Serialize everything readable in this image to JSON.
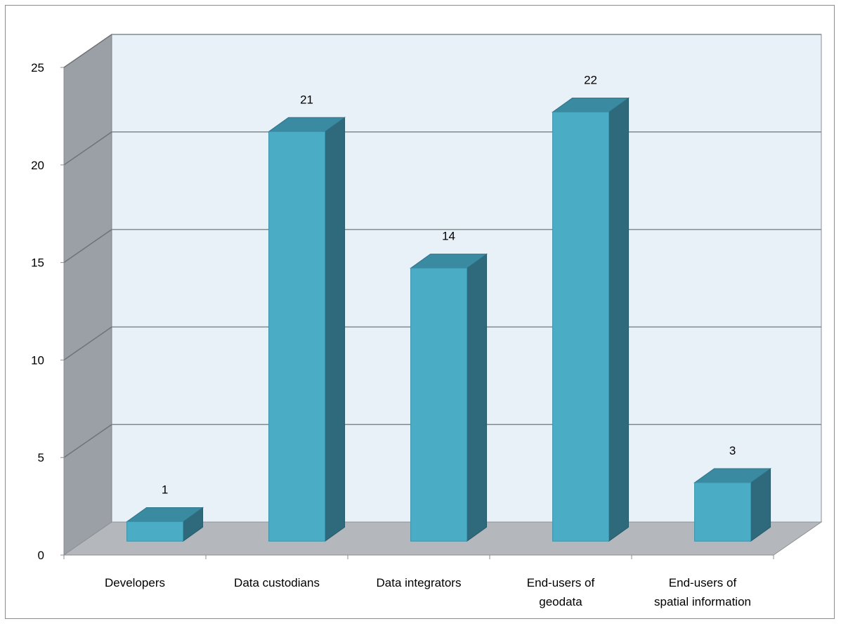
{
  "chart_data": {
    "type": "bar",
    "style": "3d-column",
    "categories": [
      [
        "Developers"
      ],
      [
        "Data custodians"
      ],
      [
        "Data integrators"
      ],
      [
        "End-users of",
        "geodata"
      ],
      [
        "End-users of",
        "spatial information"
      ]
    ],
    "values": [
      1,
      21,
      14,
      22,
      3
    ],
    "data_labels": [
      "1",
      "21",
      "14",
      "22",
      "3"
    ],
    "y_ticks": [
      "0",
      "5",
      "10",
      "15",
      "20",
      "25"
    ],
    "ylim": [
      0,
      25
    ],
    "grid": true,
    "legend": false,
    "colors": {
      "bar_front": "#4bacc6",
      "bar_top": "#3a8aa1",
      "bar_side": "#2e6a7c",
      "back_wall": "#e8f0f8",
      "side_wall": "#9aa0a6",
      "floor": "#b4b8bd",
      "grid": "#7f8c8d",
      "axis": "#8c8c8c"
    }
  }
}
